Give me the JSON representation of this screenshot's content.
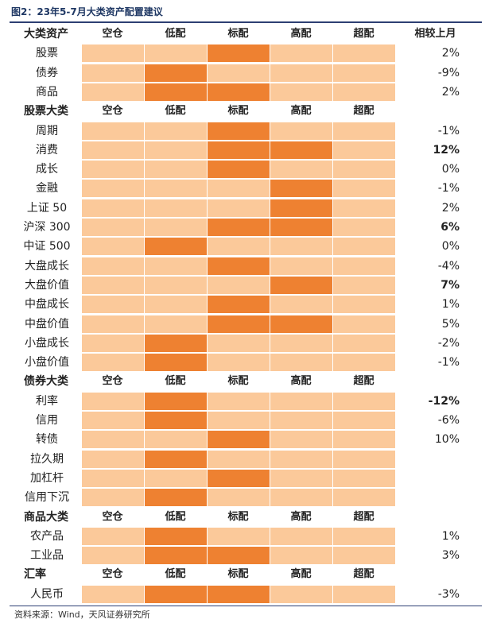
{
  "title": "图2：23年5-7月大类资产配置建议",
  "source": "资料来源：Wind，天风证券研究所",
  "levels": [
    "空仓",
    "低配",
    "标配",
    "高配",
    "超配"
  ],
  "colors": {
    "base": "#fbc99a",
    "active": "#ee8131"
  },
  "sections": [
    {
      "heading": "大类资产",
      "show_change_header": true,
      "change_header": "相较上月",
      "rows": [
        {
          "label": "股票",
          "active": [
            2
          ],
          "change": "2%",
          "bold": false
        },
        {
          "label": "债券",
          "active": [
            1
          ],
          "change": "-9%",
          "bold": false
        },
        {
          "label": "商品",
          "active": [
            1,
            2
          ],
          "change": "2%",
          "bold": false
        }
      ]
    },
    {
      "heading": "股票大类",
      "show_change_header": false,
      "rows": [
        {
          "label": "周期",
          "active": [
            2
          ],
          "change": "-1%",
          "bold": false
        },
        {
          "label": "消费",
          "active": [
            2,
            3
          ],
          "change": "12%",
          "bold": true
        },
        {
          "label": "成长",
          "active": [
            2
          ],
          "change": "0%",
          "bold": false
        },
        {
          "label": "金融",
          "active": [
            3
          ],
          "change": "-1%",
          "bold": false
        },
        {
          "label": "上证 50",
          "active": [
            3
          ],
          "change": "2%",
          "bold": false
        },
        {
          "label": "沪深 300",
          "active": [
            2,
            3
          ],
          "change": "6%",
          "bold": true
        },
        {
          "label": "中证 500",
          "active": [
            1
          ],
          "change": "0%",
          "bold": false
        },
        {
          "label": "大盘成长",
          "active": [
            2
          ],
          "change": "-4%",
          "bold": false
        },
        {
          "label": "大盘价值",
          "active": [
            3
          ],
          "change": "7%",
          "bold": true
        },
        {
          "label": "中盘成长",
          "active": [
            2
          ],
          "change": "1%",
          "bold": false
        },
        {
          "label": "中盘价值",
          "active": [
            2,
            3
          ],
          "change": "5%",
          "bold": false
        },
        {
          "label": "小盘成长",
          "active": [
            1
          ],
          "change": "-2%",
          "bold": false
        },
        {
          "label": "小盘价值",
          "active": [
            1
          ],
          "change": "-1%",
          "bold": false
        }
      ]
    },
    {
      "heading": "债券大类",
      "show_change_header": false,
      "rows": [
        {
          "label": "利率",
          "active": [
            1
          ],
          "change": "-12%",
          "bold": true
        },
        {
          "label": "信用",
          "active": [
            1
          ],
          "change": "-6%",
          "bold": false
        },
        {
          "label": "转债",
          "active": [
            2
          ],
          "change": "10%",
          "bold": false
        },
        {
          "label": "拉久期",
          "active": [
            1
          ],
          "change": "",
          "bold": false
        },
        {
          "label": "加杠杆",
          "active": [
            2
          ],
          "change": "",
          "bold": false
        },
        {
          "label": "信用下沉",
          "active": [
            1
          ],
          "change": "",
          "bold": false
        }
      ]
    },
    {
      "heading": "商品大类",
      "show_change_header": false,
      "rows": [
        {
          "label": "农产品",
          "active": [
            1
          ],
          "change": "1%",
          "bold": false
        },
        {
          "label": "工业品",
          "active": [
            1,
            2
          ],
          "change": "3%",
          "bold": false
        }
      ]
    },
    {
      "heading": "汇率",
      "show_change_header": false,
      "rows": [
        {
          "label": "人民币",
          "active": [
            1,
            2
          ],
          "change": "-3%",
          "bold": false
        }
      ]
    }
  ]
}
